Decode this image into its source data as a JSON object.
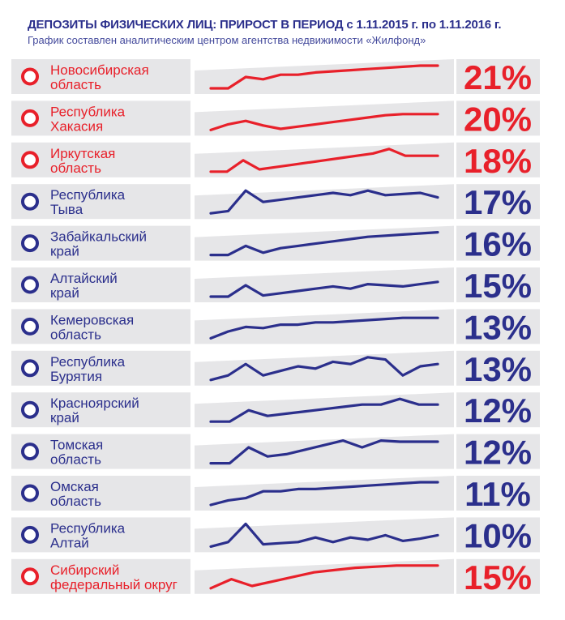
{
  "header": {
    "title": "ДЕПОЗИТЫ ФИЗИЧЕСКИХ ЛИЦ: ПРИРОСТ В ПЕРИОД с 1.11.2015 г. по 1.11.2016 г.",
    "subtitle": "График составлен аналитическим центром агентства недвижимости «Жилфонд»"
  },
  "colors": {
    "red": "#e8202a",
    "blue": "#2b2f8c",
    "band": "#e6e6e8"
  },
  "chart_data": {
    "type": "line",
    "title": "ДЕПОЗИТЫ ФИЗИЧЕСКИХ ЛИЦ: ПРИРОСТ В ПЕРИОД с 1.11.2015 г. по 1.11.2016 г.",
    "subtitle": "График составлен аналитическим центром агентства недвижимости «Жилфонд»",
    "xlabel": "",
    "ylabel": "",
    "grid": false,
    "note": "Unlabeled sparklines; values are relative levels (0–10) estimated from line shapes.",
    "series": [
      {
        "name_line1": "Новосибирская",
        "name_line2": "область",
        "growth": "21%",
        "color": "red",
        "values": [
          0,
          0,
          5,
          4,
          6,
          6,
          7,
          7.5,
          8,
          8.5,
          9,
          9.5,
          10,
          10
        ]
      },
      {
        "name_line1": "Республика",
        "name_line2": "Хакасия",
        "growth": "20%",
        "color": "red",
        "values": [
          0,
          2.5,
          4,
          2,
          0.5,
          1.5,
          2.5,
          3.5,
          4.5,
          5.5,
          6.5,
          7,
          7,
          7
        ]
      },
      {
        "name_line1": "Иркутская",
        "name_line2": "область",
        "growth": "18%",
        "color": "red",
        "values": [
          0,
          0,
          5,
          1,
          2,
          3,
          4,
          5,
          6,
          7,
          8,
          10,
          7,
          7,
          7
        ]
      },
      {
        "name_line1": "Республика",
        "name_line2": "Тыва",
        "growth": "17%",
        "color": "blue",
        "values": [
          0,
          1,
          10,
          5,
          6,
          7,
          8,
          9,
          8,
          10,
          8,
          8.5,
          9,
          7
        ]
      },
      {
        "name_line1": "Забайкальский",
        "name_line2": "край",
        "growth": "16%",
        "color": "blue",
        "values": [
          0,
          0,
          4,
          1,
          3,
          4,
          5,
          6,
          7,
          8,
          8.5,
          9,
          9.5,
          10
        ]
      },
      {
        "name_line1": "Алтайский",
        "name_line2": "край",
        "growth": "15%",
        "color": "blue",
        "values": [
          0,
          0,
          5,
          0.5,
          1.5,
          2.5,
          3.5,
          4.5,
          3.5,
          5.5,
          5,
          4.5,
          5.5,
          6.5
        ]
      },
      {
        "name_line1": "Кемеровская",
        "name_line2": "область",
        "growth": "13%",
        "color": "blue",
        "values": [
          0,
          3,
          5,
          4.5,
          6,
          6,
          7,
          7,
          7.5,
          8,
          8.5,
          9,
          9,
          9
        ]
      },
      {
        "name_line1": "Республика",
        "name_line2": "Бурятия",
        "growth": "13%",
        "color": "blue",
        "values": [
          0,
          2,
          7,
          2,
          4,
          6,
          5,
          8,
          7,
          10,
          9,
          2,
          6,
          7
        ]
      },
      {
        "name_line1": "Красноярский",
        "name_line2": "край",
        "growth": "12%",
        "color": "blue",
        "values": [
          0,
          0,
          5,
          2.5,
          3.5,
          4.5,
          5.5,
          6.5,
          7.5,
          7.5,
          10,
          7.5,
          7.5
        ]
      },
      {
        "name_line1": "Томская",
        "name_line2": "область",
        "growth": "12%",
        "color": "blue",
        "values": [
          0,
          0,
          7,
          3,
          4,
          6,
          8,
          10,
          7,
          10,
          9.5,
          9.5,
          9.5
        ]
      },
      {
        "name_line1": "Омская",
        "name_line2": "область",
        "growth": "11%",
        "color": "blue",
        "values": [
          0,
          2,
          3,
          6,
          6,
          7,
          7,
          7.5,
          8,
          8.5,
          9,
          9.5,
          10,
          10
        ]
      },
      {
        "name_line1": "Республика",
        "name_line2": "Алтай",
        "growth": "10%",
        "color": "blue",
        "values": [
          0,
          2,
          10,
          1,
          1.5,
          2,
          4,
          2,
          4,
          3,
          5,
          2.5,
          3.5,
          5
        ]
      },
      {
        "name_line1": "Сибирский",
        "name_line2": "федеральный округ",
        "growth": "15%",
        "color": "red",
        "values": [
          0,
          4,
          1,
          3,
          5,
          7,
          8,
          9,
          9.5,
          10,
          10,
          10
        ]
      }
    ]
  }
}
